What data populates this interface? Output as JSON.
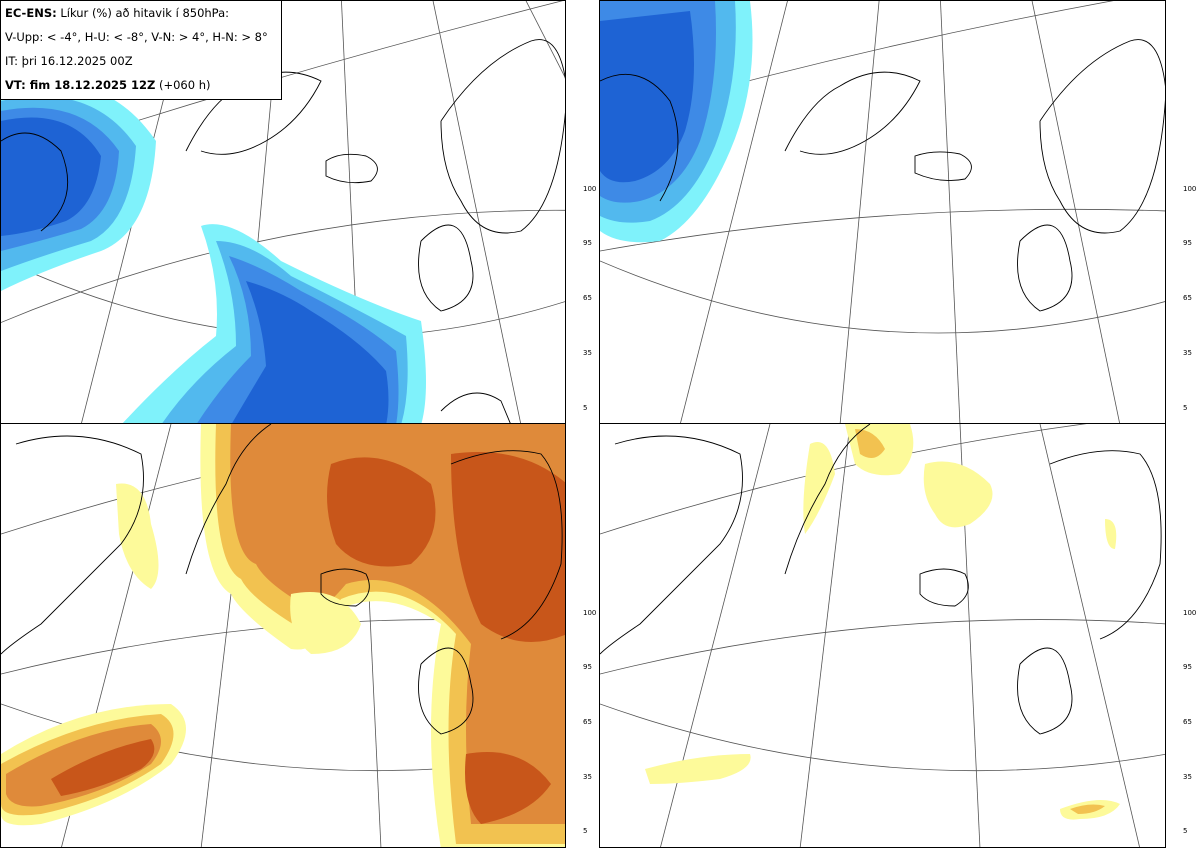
{
  "info": {
    "model": "EC-ENS:",
    "title_rest": "Líkur (%) að hitavik í 850hPa:",
    "thresholds": "V-Upp: < -4°, H-U: < -8°, V-N: > 4°, H-N: > 8°",
    "init_time": "IT: þri 16.12.2025 00Z",
    "valid_prefix": "VT: fim 18.12.2025 12Z",
    "valid_lead": "(+060 h)"
  },
  "colorbar_ticks": [
    "100",
    "95",
    "65",
    "35",
    "5"
  ],
  "colors": {
    "cold": [
      "#1e63d4",
      "#3e8ae6",
      "#52b9ee",
      "#7ff2fb"
    ],
    "warm": [
      "#c8561a",
      "#df8a3a",
      "#f2c250",
      "#fdfa9a"
    ]
  },
  "panels": [
    {
      "id": "cold-weak",
      "field": "V-Upp: < -4°"
    },
    {
      "id": "cold-strong",
      "field": "H-U: < -8°"
    },
    {
      "id": "warm-weak",
      "field": "V-N: > 4°"
    },
    {
      "id": "warm-strong",
      "field": "H-N: > 8°"
    }
  ]
}
